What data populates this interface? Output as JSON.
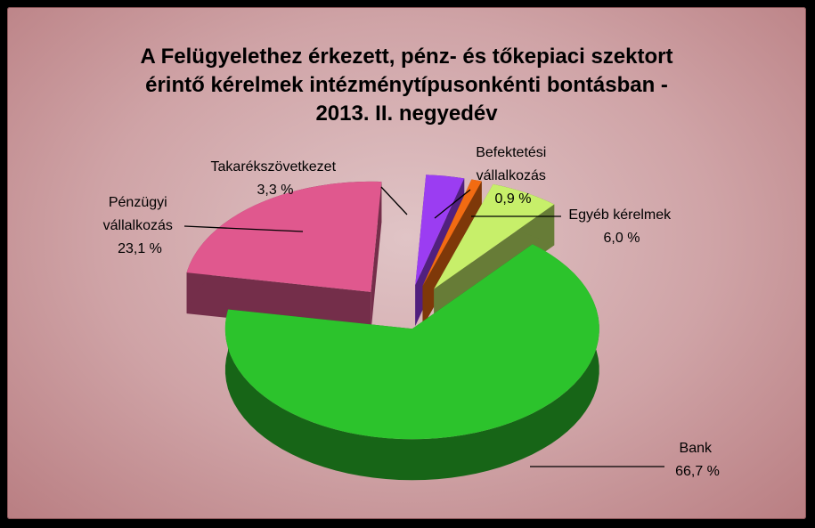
{
  "chart_data": {
    "type": "pie",
    "title_lines": [
      "A Felügyelethez érkezett, pénz- és tőkepiaci szektort",
      "érintő kérelmek intézménytípusonkénti bontásban -",
      "2013. II. negyedév"
    ],
    "slices": [
      {
        "name": "Bank",
        "value": 66.7,
        "value_label": "66,7 %",
        "color": "#2cc32c"
      },
      {
        "name_lines": [
          "Pénzügyi",
          "vállalkozás"
        ],
        "value": 23.1,
        "value_label": "23,1 %",
        "color": "#e0588e"
      },
      {
        "name": "Takarékszövetkezet",
        "value": 3.3,
        "value_label": "3,3 %",
        "color": "#9b3df2"
      },
      {
        "name_lines": [
          "Befektetési",
          "vállalkozás"
        ],
        "value": 0.9,
        "value_label": "0,9 %",
        "color": "#f26b12"
      },
      {
        "name": "Egyéb kérelmek",
        "value": 6.0,
        "value_label": "6,0 %",
        "color": "#c7ef6a"
      }
    ],
    "legend": "none"
  }
}
